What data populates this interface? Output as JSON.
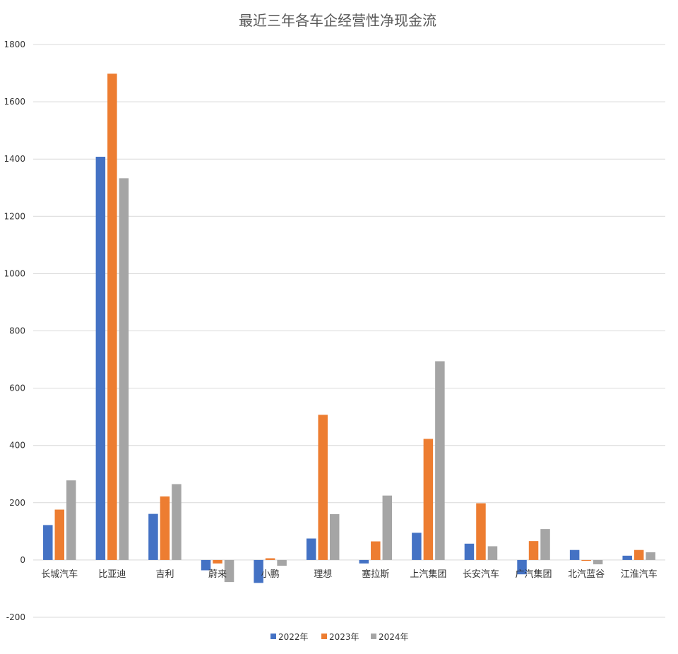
{
  "chart_data": {
    "type": "bar",
    "title": "最近三年各车企经营性净现金流",
    "categories": [
      "长城汽车",
      "比亚迪",
      "吉利",
      "蔚来",
      "小鹏",
      "理想",
      "塞拉斯",
      "上汽集团",
      "长安汽车",
      "广汽集团",
      "北汽蓝谷",
      "江淮汽车"
    ],
    "series": [
      {
        "name": "2022年",
        "color": "#4472c4",
        "values": [
          122,
          1408,
          161,
          -36,
          -80,
          75,
          -12,
          95,
          57,
          -50,
          35,
          15
        ]
      },
      {
        "name": "2023年",
        "color": "#ed7d31",
        "values": [
          176,
          1698,
          222,
          -12,
          6,
          507,
          65,
          423,
          198,
          66,
          -3,
          35
        ]
      },
      {
        "name": "2024年",
        "color": "#a5a5a5",
        "values": [
          278,
          1333,
          265,
          -77,
          -20,
          160,
          225,
          694,
          48,
          108,
          -15,
          27
        ]
      }
    ],
    "ylim": [
      -200,
      1800
    ],
    "yticks": [
      -200,
      0,
      200,
      400,
      600,
      800,
      1000,
      1200,
      1400,
      1600,
      1800
    ],
    "grid": true,
    "legend_position": "bottom"
  }
}
